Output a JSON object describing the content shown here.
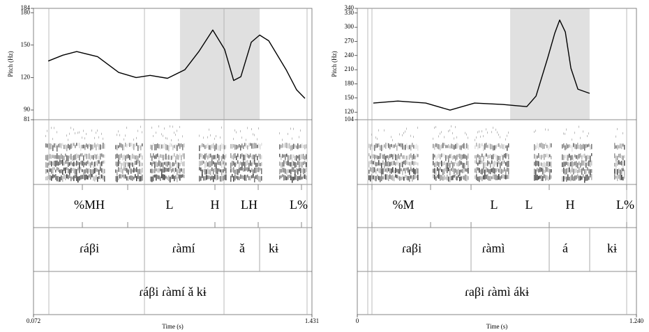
{
  "chart_data": [
    {
      "type": "line",
      "y_label": "Pitch (Hz)",
      "x_label": "Time (s)",
      "xlim": [
        0.072,
        1.431
      ],
      "xticks": [
        0.072,
        1.431
      ],
      "ylim": [
        81,
        184
      ],
      "yticks": [
        81,
        90,
        120,
        150,
        180,
        184
      ],
      "shaded": [
        0.787,
        1.176
      ],
      "series": [
        {
          "color": "#000000",
          "x": [
            0.144,
            0.215,
            0.283,
            0.385,
            0.488,
            0.573,
            0.641,
            0.726,
            0.811,
            0.879,
            0.947,
            1.005,
            1.049,
            1.084,
            1.135,
            1.176,
            1.22,
            1.305,
            1.356,
            1.397
          ],
          "values": [
            135.3,
            140.7,
            144,
            139.3,
            124.7,
            120,
            122,
            119.3,
            127.3,
            144,
            164,
            146,
            117.3,
            120.7,
            152.7,
            159.3,
            154,
            127.3,
            108.7,
            100.7
          ]
        }
      ],
      "tiers": [
        [
          "%MH",
          "L",
          "H",
          "LH",
          "L%"
        ],
        [
          "ɾáβi",
          "ɾàmí",
          "ǎ",
          "kɨ"
        ],
        [
          "ɾáβi ɾàmí ǎ kɨ"
        ]
      ]
    },
    {
      "type": "line",
      "y_label": "Pitch (Hz)",
      "x_label": "Time (s)",
      "xlim": [
        0,
        1.24
      ],
      "xticks": [
        0,
        {
          "value": 1.24,
          "label": "1.240"
        }
      ],
      "ylim": [
        104,
        340
      ],
      "yticks": [
        104,
        120,
        150,
        180,
        210,
        240,
        270,
        300,
        330,
        340
      ],
      "shaded": [
        0.679,
        1.032
      ],
      "series": [
        {
          "color": "#000000",
          "x": [
            0.071,
            0.18,
            0.304,
            0.412,
            0.521,
            0.645,
            0.753,
            0.794,
            0.846,
            0.877,
            0.899,
            0.924,
            0.949,
            0.98,
            1.032
          ],
          "values": [
            139.2,
            143.6,
            139.2,
            124.4,
            139.2,
            136.3,
            131.8,
            154,
            235.3,
            287.1,
            315.2,
            290,
            213.2,
            168.8,
            159.9
          ]
        }
      ],
      "tiers": [
        [
          "%M",
          "L",
          "L",
          "H",
          "L%"
        ],
        [
          "ɾaβi",
          "ɾàmì",
          "á",
          "kɨ"
        ],
        [
          "ɾaβi ɾàmì ákɨ"
        ]
      ]
    }
  ]
}
